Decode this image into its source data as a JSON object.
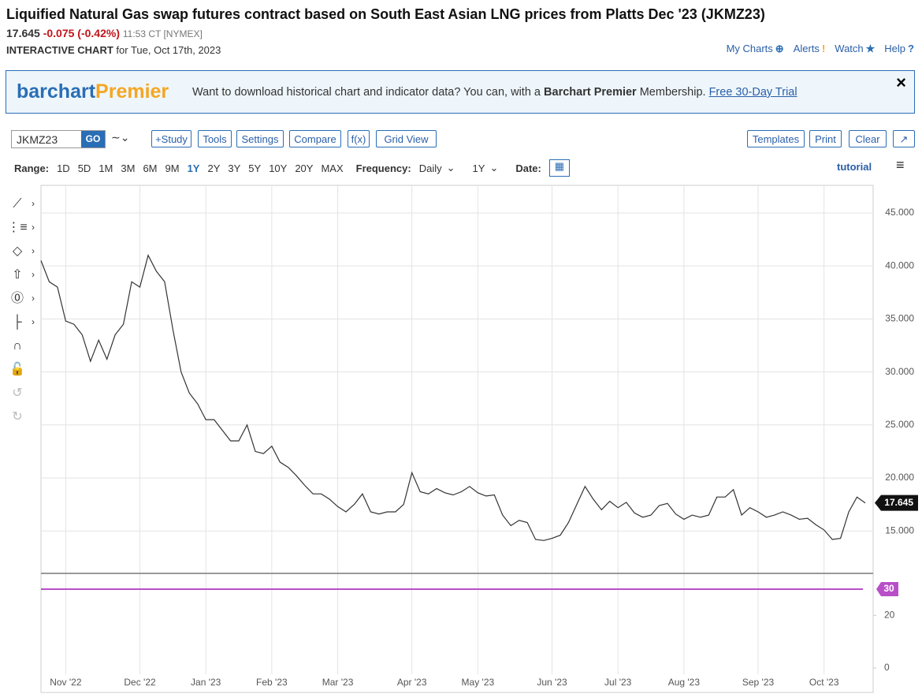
{
  "header": {
    "title": "Liquified Natural Gas swap futures contract based on South East Asian LNG prices from Platts Dec '23 (JKMZ23)",
    "last": "17.645",
    "change": "-0.075 (-0.42%)",
    "time": "11:53 CT [NYMEX]",
    "subtitle_bold": "INTERACTIVE CHART",
    "subtitle_rest": "for Tue, Oct 17th, 2023",
    "links": [
      "My Charts",
      "Alerts",
      "Watch",
      "Help"
    ]
  },
  "banner": {
    "logo_a": "barchart",
    "logo_b": "Premier",
    "text_a": "Want to download historical chart and indicator data? You can, with a ",
    "text_bold": "Barchart Premier",
    "text_b": " Membership. ",
    "link": "Free 30-Day Trial"
  },
  "toolbar": {
    "symbol": "JKMZ23",
    "go": "GO",
    "buttons": [
      "+Study",
      "Tools",
      "Settings",
      "Compare",
      "f(x)",
      "Grid View"
    ],
    "right_buttons": [
      "Templates",
      "Print",
      "Clear"
    ]
  },
  "range": {
    "label": "Range:",
    "options": [
      "1D",
      "5D",
      "1M",
      "3M",
      "6M",
      "9M",
      "1Y",
      "2Y",
      "3Y",
      "5Y",
      "10Y",
      "20Y",
      "MAX"
    ],
    "active": 6,
    "frequency_label": "Frequency:",
    "frequency": "Daily",
    "period": "1Y",
    "date_label": "Date:",
    "tutorial": "tutorial"
  },
  "chart_data": [
    {
      "type": "line",
      "color": "#333333",
      "categories": [
        null,
        null,
        null,
        "Nov '22",
        null,
        null,
        null,
        null,
        null,
        null,
        null,
        null,
        "Dec '22",
        null,
        null,
        null,
        null,
        null,
        null,
        null,
        "Jan '23",
        null,
        null,
        null,
        null,
        null,
        null,
        null,
        "Feb '23",
        null,
        null,
        null,
        null,
        null,
        null,
        null,
        "Mar '23",
        null,
        null,
        null,
        null,
        null,
        null,
        null,
        null,
        "Apr '23",
        null,
        null,
        null,
        null,
        null,
        null,
        null,
        "May '23",
        null,
        null,
        null,
        null,
        null,
        null,
        null,
        null,
        "Jun '23",
        null,
        null,
        null,
        null,
        null,
        null,
        null,
        "Jul '23",
        null,
        null,
        null,
        null,
        null,
        null,
        null,
        "Aug '23",
        null,
        null,
        null,
        null,
        null,
        null,
        null,
        null,
        "Sep '23",
        null,
        null,
        null,
        null,
        null,
        null,
        null,
        "Oct '23",
        null,
        null,
        null,
        null,
        null
      ],
      "values": [
        40.5,
        38.5,
        38.0,
        34.8,
        34.5,
        33.5,
        31.0,
        33.0,
        31.2,
        33.5,
        34.5,
        38.5,
        38.0,
        41.0,
        39.5,
        38.5,
        34.0,
        30.0,
        28.0,
        27.0,
        25.5,
        25.5,
        24.5,
        23.5,
        23.5,
        25.0,
        22.5,
        22.3,
        23.0,
        21.5,
        21.0,
        20.2,
        19.3,
        18.5,
        18.5,
        18.0,
        17.3,
        16.8,
        17.5,
        18.5,
        16.8,
        16.6,
        16.8,
        16.8,
        17.5,
        20.5,
        18.7,
        18.5,
        19.0,
        18.6,
        18.4,
        18.7,
        19.2,
        18.6,
        18.3,
        18.4,
        16.5,
        15.5,
        16.0,
        15.8,
        14.2,
        14.1,
        14.3,
        14.6,
        15.8,
        17.5,
        19.2,
        18.0,
        17.0,
        17.8,
        17.2,
        17.7,
        16.7,
        16.3,
        16.5,
        17.4,
        17.6,
        16.6,
        16.1,
        16.5,
        16.3,
        16.5,
        18.2,
        18.2,
        18.9,
        16.5,
        17.2,
        16.8,
        16.3,
        16.5,
        16.8,
        16.5,
        16.1,
        16.2,
        15.6,
        15.1,
        14.2,
        14.3,
        16.8,
        18.2,
        17.645
      ],
      "ylim": [
        11,
        47.6
      ],
      "yticks": [
        {
          "value": 15,
          "label": "15.000"
        },
        {
          "value": 20,
          "label": "20.000"
        },
        {
          "value": 25,
          "label": "25.000"
        },
        {
          "value": 30,
          "label": "30.000"
        },
        {
          "value": 35,
          "label": "35.000"
        },
        {
          "value": 40,
          "label": "40.000"
        },
        {
          "value": 45,
          "label": "45.000"
        }
      ],
      "grid": true
    },
    {
      "type": "hline",
      "value": 30,
      "color": "#b84fc8",
      "ylim": [
        -2.4,
        36
      ],
      "yticks": [
        0,
        20
      ]
    }
  ]
}
